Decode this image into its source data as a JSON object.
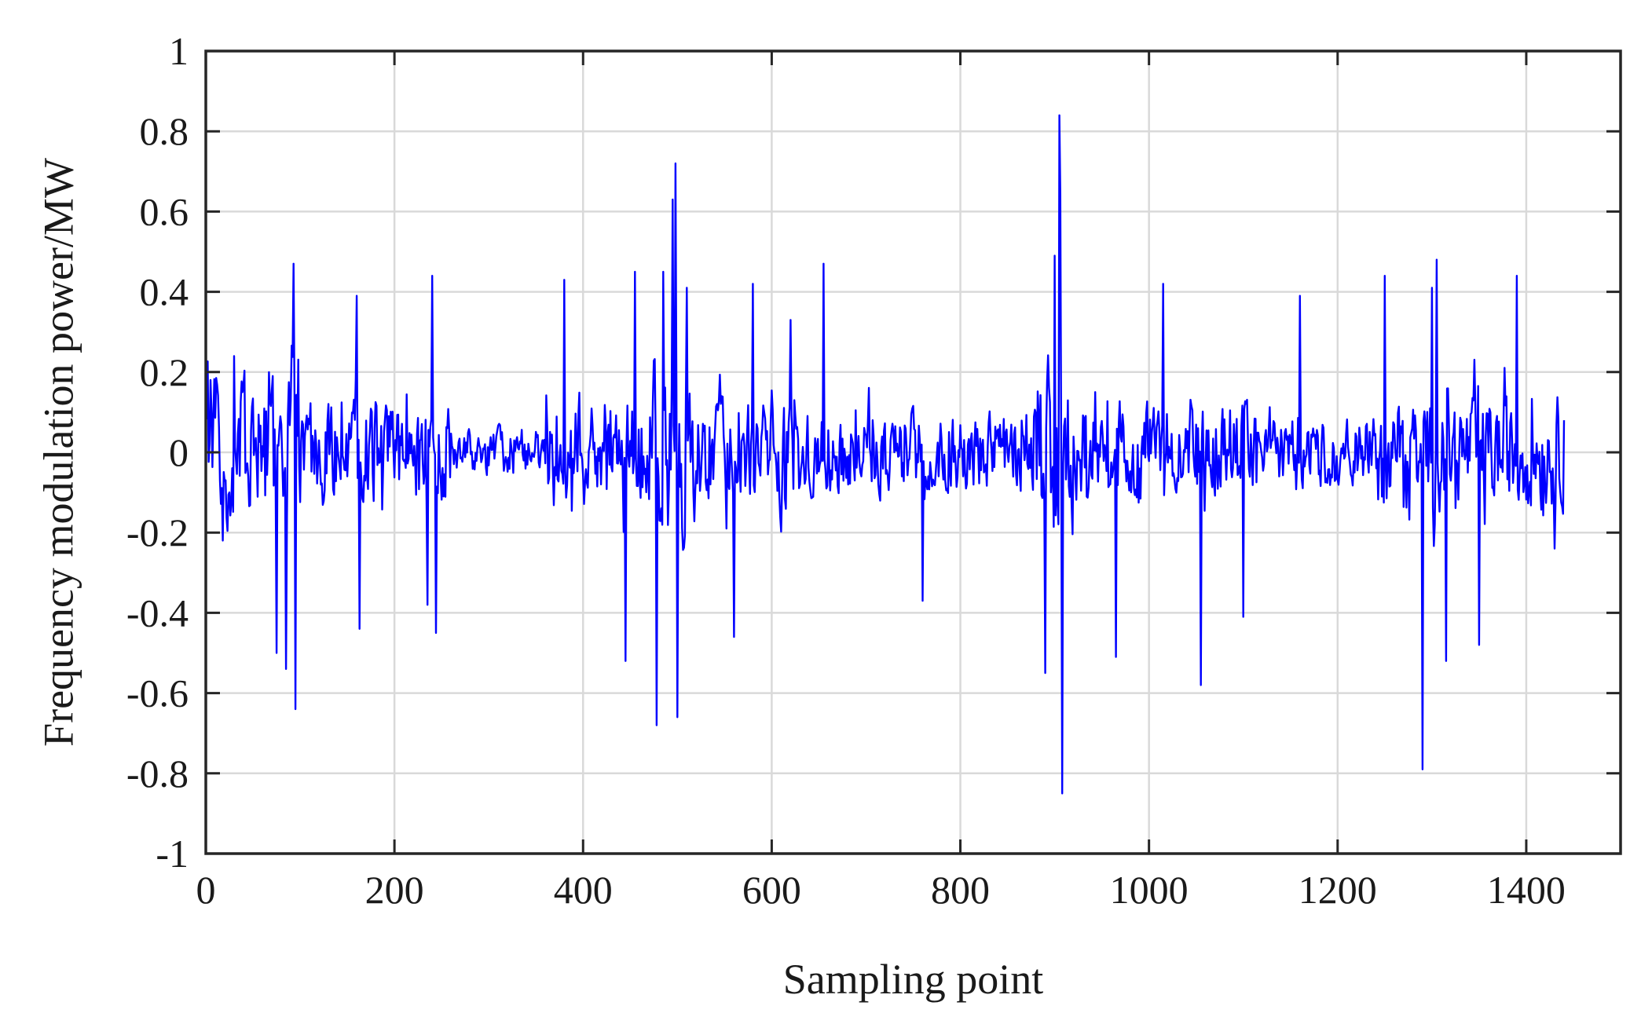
{
  "chart_data": {
    "type": "line",
    "title": "",
    "xlabel": "Sampling point",
    "ylabel": "Frequency modulation power/MW",
    "xlim": [
      0,
      1500
    ],
    "ylim": [
      -1,
      1
    ],
    "xticks": [
      0,
      200,
      400,
      600,
      800,
      1000,
      1200,
      1400
    ],
    "xtick_labels": [
      "0",
      "200",
      "400",
      "600",
      "800",
      "1000",
      "1200",
      "1400"
    ],
    "yticks": [
      -1,
      -0.8,
      -0.6,
      -0.4,
      -0.2,
      0,
      0.2,
      0.4,
      0.6,
      0.8,
      1
    ],
    "ytick_labels": [
      "-1",
      "-0.8",
      "-0.6",
      "-0.4",
      "-0.2",
      "0",
      "0.2",
      "0.4",
      "0.6",
      "0.8",
      "1"
    ],
    "grid": true,
    "legend": "none",
    "series": [
      {
        "color": "#0000ff",
        "x_start": 1,
        "x_end": 1440,
        "notable_points": [
          [
            5,
            0.18
          ],
          [
            18,
            -0.22
          ],
          [
            30,
            0.24
          ],
          [
            75,
            -0.5
          ],
          [
            85,
            -0.54
          ],
          [
            93,
            0.47
          ],
          [
            95,
            -0.64
          ],
          [
            160,
            0.39
          ],
          [
            163,
            -0.44
          ],
          [
            235,
            -0.38
          ],
          [
            240,
            0.44
          ],
          [
            244,
            -0.45
          ],
          [
            380,
            0.43
          ],
          [
            445,
            -0.52
          ],
          [
            455,
            0.45
          ],
          [
            478,
            -0.68
          ],
          [
            485,
            0.45
          ],
          [
            495,
            0.63
          ],
          [
            498,
            0.72
          ],
          [
            500,
            -0.66
          ],
          [
            510,
            0.41
          ],
          [
            560,
            -0.46
          ],
          [
            580,
            0.42
          ],
          [
            620,
            0.33
          ],
          [
            655,
            0.47
          ],
          [
            760,
            -0.37
          ],
          [
            890,
            -0.55
          ],
          [
            900,
            0.49
          ],
          [
            905,
            0.84
          ],
          [
            906,
            0.64
          ],
          [
            908,
            -0.85
          ],
          [
            965,
            -0.51
          ],
          [
            1015,
            0.42
          ],
          [
            1055,
            -0.58
          ],
          [
            1100,
            -0.41
          ],
          [
            1160,
            0.39
          ],
          [
            1250,
            0.44
          ],
          [
            1290,
            -0.79
          ],
          [
            1300,
            0.41
          ],
          [
            1305,
            0.48
          ],
          [
            1315,
            -0.52
          ],
          [
            1350,
            -0.48
          ],
          [
            1390,
            0.44
          ],
          [
            1430,
            -0.24
          ],
          [
            1440,
            0.08
          ]
        ],
        "segments": [
          {
            "x": [
              1,
              100
            ],
            "amp": 0.24
          },
          {
            "x": [
              100,
              260
            ],
            "amp": 0.16
          },
          {
            "x": [
              260,
              360
            ],
            "amp": 0.08
          },
          {
            "x": [
              360,
              470
            ],
            "amp": 0.18
          },
          {
            "x": [
              470,
              520
            ],
            "amp": 0.3
          },
          {
            "x": [
              520,
              630
            ],
            "amp": 0.16
          },
          {
            "x": [
              630,
              760
            ],
            "amp": 0.13
          },
          {
            "x": [
              760,
              880
            ],
            "amp": 0.12
          },
          {
            "x": [
              880,
              920
            ],
            "amp": 0.28
          },
          {
            "x": [
              920,
              1120
            ],
            "amp": 0.16
          },
          {
            "x": [
              1120,
              1240
            ],
            "amp": 0.11
          },
          {
            "x": [
              1240,
              1440
            ],
            "amp": 0.18
          }
        ]
      }
    ]
  }
}
